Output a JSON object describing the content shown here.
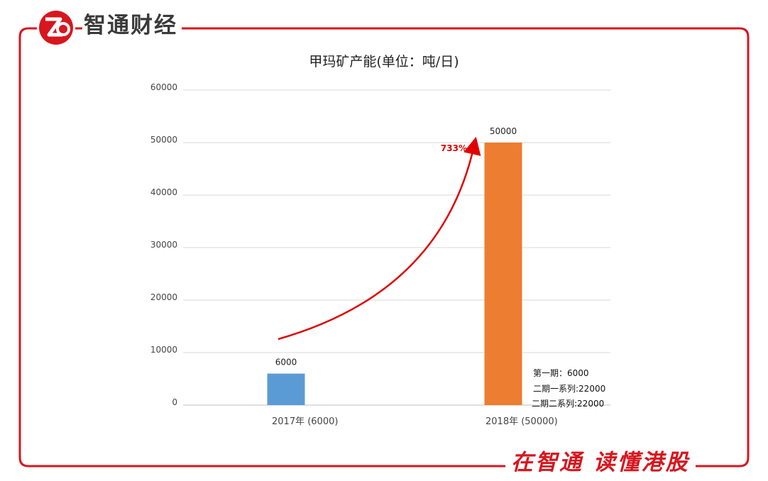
{
  "brand": {
    "name": "智通财经",
    "logo_icon": "zhitong-logo-icon",
    "logo_color": "#d7161e"
  },
  "slogan": "在智通 读懂港股",
  "chart_data": {
    "type": "bar",
    "title": "甲玛矿产能(单位：吨/日)",
    "categories": [
      "2017年 (6000)",
      "2018年  (50000)"
    ],
    "values": [
      6000,
      50000
    ],
    "data_labels": [
      "6000",
      "50000"
    ],
    "colors": [
      "#5b9bd5",
      "#ed7d31"
    ],
    "ylim": [
      0,
      60000
    ],
    "yticks": [
      0,
      10000,
      20000,
      30000,
      40000,
      50000,
      60000
    ],
    "grid": true,
    "annotation": {
      "text": "733%",
      "color": "#e00000",
      "type": "growth-arrow"
    },
    "notes": [
      "第一期：6000",
      "二期一系列:22000",
      "二期二系列:22000"
    ]
  }
}
